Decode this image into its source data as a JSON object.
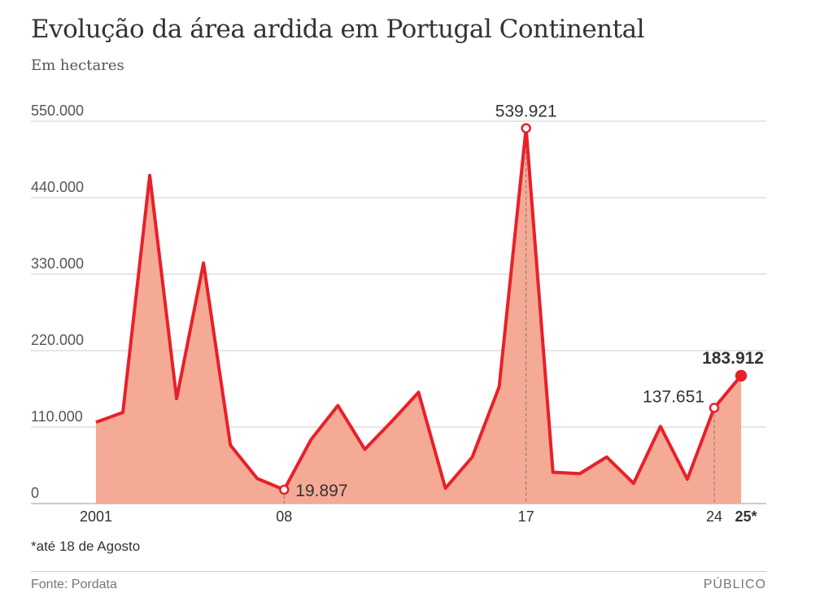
{
  "chart_data": {
    "type": "area",
    "title": "Evolução da área ardida em Portugal Continental",
    "subtitle": "Em hectares",
    "x": [
      2001,
      2002,
      2003,
      2004,
      2005,
      2006,
      2007,
      2008,
      2009,
      2010,
      2011,
      2012,
      2013,
      2014,
      2015,
      2016,
      2017,
      2018,
      2019,
      2020,
      2021,
      2022,
      2023,
      2024,
      2025
    ],
    "values": [
      117000,
      131000,
      472000,
      151000,
      346000,
      84000,
      36000,
      19897,
      92000,
      141000,
      78000,
      118000,
      160000,
      22000,
      67000,
      168000,
      539921,
      45000,
      43000,
      67000,
      29000,
      111000,
      35000,
      137651,
      183912
    ],
    "ylim": [
      0,
      550000
    ],
    "yticks": [
      "0",
      "110.000",
      "220.000",
      "330.000",
      "440.000",
      "550.000"
    ],
    "yticks_values": [
      0,
      110000,
      220000,
      330000,
      440000,
      550000
    ],
    "xticks": [
      {
        "year": 2001,
        "label": "2001"
      },
      {
        "year": 2008,
        "label": "08"
      },
      {
        "year": 2017,
        "label": "17"
      },
      {
        "year": 2024,
        "label": "24"
      },
      {
        "year": 2025,
        "label": "25*"
      }
    ],
    "annotations": [
      {
        "year": 2008,
        "label": "19.897"
      },
      {
        "year": 2017,
        "label": "539.921"
      },
      {
        "year": 2024,
        "label": "137.651"
      },
      {
        "year": 2025,
        "label": "183.912"
      }
    ],
    "grid": true,
    "colors": {
      "line": "#e8202a",
      "fill": "#f5aa96",
      "grid": "#cccccc"
    }
  },
  "note": "*até 18 de Agosto",
  "source": "Fonte: Pordata",
  "brand": "PÚBLICO"
}
